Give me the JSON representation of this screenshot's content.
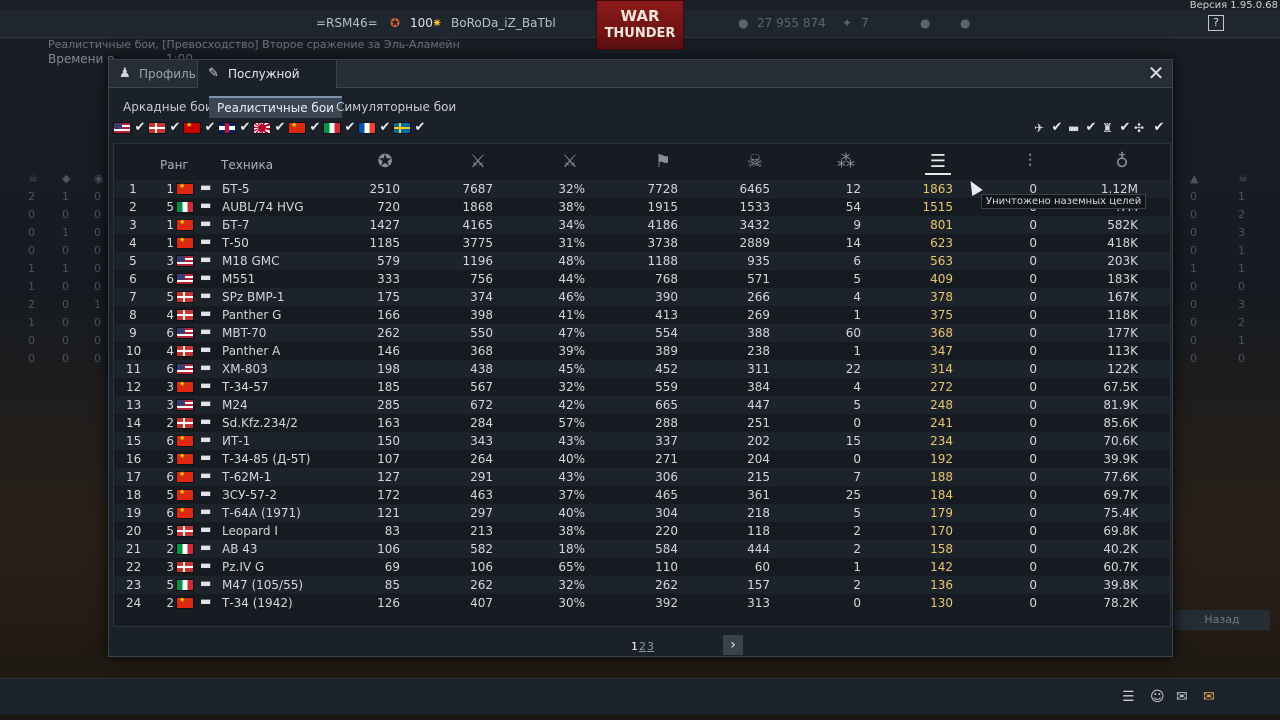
{
  "top": {
    "version": "Версия 1.95.0.68",
    "squad_tag": "=RSM46=",
    "level": "100",
    "nickname": "BoRoDa_iZ_BaTbl",
    "logo_line1": "WAR",
    "logo_line2": "THUNDER",
    "silver": "27 955 874",
    "gold": "7",
    "help": "?"
  },
  "background": {
    "battle_mode": "Реалистичные бои, [Превосходство] Второе сражение за Эль-Аламейн",
    "time_label": "Времени о",
    "time_value": "1:00",
    "back_button": "Назад"
  },
  "modal": {
    "tabs": [
      {
        "label": "Профиль",
        "icon": "profile-icon"
      },
      {
        "label": "Послужной список",
        "icon": "service-record-icon"
      }
    ],
    "close": "✕",
    "mode_tabs": [
      "Аркадные бои",
      "Реалистичные бои",
      "Симуляторные бои"
    ],
    "nations": [
      "usa",
      "germany",
      "ussr",
      "britain",
      "japan",
      "china",
      "italy",
      "france",
      "sweden"
    ],
    "filters": [
      "aircraft-icon",
      "tank-icon",
      "ship-icon",
      "helicopter-icon"
    ],
    "headers": {
      "rank": "Ранг",
      "vehicle": "Техника",
      "columns": [
        "victories-icon",
        "battles-icon",
        "winrate-icon",
        "respawns-icon",
        "deaths-icon",
        "flyouts-icon",
        "ground-kills-icon",
        "naval-kills-icon",
        "activity-icon"
      ]
    },
    "tooltip": "Уничтожено наземных целей",
    "pages": [
      "1",
      "2",
      "3"
    ],
    "next": "›"
  },
  "accent_color": "#e8c76a",
  "rows": [
    {
      "n": "1",
      "rank": "1",
      "flag": "chn",
      "name": "БТ-5",
      "c": [
        "2510",
        "7687",
        "32%",
        "7728",
        "6465",
        "12",
        "1863",
        "0",
        "1.12M"
      ]
    },
    {
      "n": "2",
      "rank": "5",
      "flag": "ita",
      "name": "AUBL/74 HVG",
      "c": [
        "720",
        "1868",
        "38%",
        "1915",
        "1533",
        "54",
        "1515",
        "0",
        ".7M"
      ]
    },
    {
      "n": "3",
      "rank": "1",
      "flag": "chn",
      "name": "БТ-7",
      "c": [
        "1427",
        "4165",
        "34%",
        "4186",
        "3432",
        "9",
        "801",
        "0",
        "582K"
      ]
    },
    {
      "n": "4",
      "rank": "1",
      "flag": "chn",
      "name": "Т-50",
      "c": [
        "1185",
        "3775",
        "31%",
        "3738",
        "2889",
        "14",
        "623",
        "0",
        "418K"
      ]
    },
    {
      "n": "5",
      "rank": "3",
      "flag": "usa",
      "name": "M18 GMC",
      "c": [
        "579",
        "1196",
        "48%",
        "1188",
        "935",
        "6",
        "563",
        "0",
        "203K"
      ]
    },
    {
      "n": "6",
      "rank": "6",
      "flag": "usa",
      "name": "M551",
      "c": [
        "333",
        "756",
        "44%",
        "768",
        "571",
        "5",
        "409",
        "0",
        "183K"
      ]
    },
    {
      "n": "7",
      "rank": "5",
      "flag": "ger",
      "name": "SPz BMP-1",
      "c": [
        "175",
        "374",
        "46%",
        "390",
        "266",
        "4",
        "378",
        "0",
        "167K"
      ]
    },
    {
      "n": "8",
      "rank": "4",
      "flag": "ger",
      "name": "Panther G",
      "c": [
        "166",
        "398",
        "41%",
        "413",
        "269",
        "1",
        "375",
        "0",
        "118K"
      ]
    },
    {
      "n": "9",
      "rank": "6",
      "flag": "usa",
      "name": "MBT-70",
      "c": [
        "262",
        "550",
        "47%",
        "554",
        "388",
        "60",
        "368",
        "0",
        "177K"
      ]
    },
    {
      "n": "10",
      "rank": "4",
      "flag": "ger",
      "name": "Panther A",
      "c": [
        "146",
        "368",
        "39%",
        "389",
        "238",
        "1",
        "347",
        "0",
        "113K"
      ]
    },
    {
      "n": "11",
      "rank": "6",
      "flag": "usa",
      "name": "XM-803",
      "c": [
        "198",
        "438",
        "45%",
        "452",
        "311",
        "22",
        "314",
        "0",
        "122K"
      ]
    },
    {
      "n": "12",
      "rank": "3",
      "flag": "chn",
      "name": "Т-34-57",
      "c": [
        "185",
        "567",
        "32%",
        "559",
        "384",
        "4",
        "272",
        "0",
        "67.5K"
      ]
    },
    {
      "n": "13",
      "rank": "3",
      "flag": "usa",
      "name": "M24",
      "c": [
        "285",
        "672",
        "42%",
        "665",
        "447",
        "5",
        "248",
        "0",
        "81.9K"
      ]
    },
    {
      "n": "14",
      "rank": "2",
      "flag": "ger",
      "name": "Sd.Kfz.234/2",
      "c": [
        "163",
        "284",
        "57%",
        "288",
        "251",
        "0",
        "241",
        "0",
        "85.6K"
      ]
    },
    {
      "n": "15",
      "rank": "6",
      "flag": "chn",
      "name": "ИТ-1",
      "c": [
        "150",
        "343",
        "43%",
        "337",
        "202",
        "15",
        "234",
        "0",
        "70.6K"
      ]
    },
    {
      "n": "16",
      "rank": "3",
      "flag": "chn",
      "name": "Т-34-85 (Д-5Т)",
      "c": [
        "107",
        "264",
        "40%",
        "271",
        "204",
        "0",
        "192",
        "0",
        "39.9K"
      ]
    },
    {
      "n": "17",
      "rank": "6",
      "flag": "chn",
      "name": "Т-62М-1",
      "c": [
        "127",
        "291",
        "43%",
        "306",
        "215",
        "7",
        "188",
        "0",
        "77.6K"
      ]
    },
    {
      "n": "18",
      "rank": "5",
      "flag": "chn",
      "name": "ЗСУ-57-2",
      "c": [
        "172",
        "463",
        "37%",
        "465",
        "361",
        "25",
        "184",
        "0",
        "69.7K"
      ]
    },
    {
      "n": "19",
      "rank": "6",
      "flag": "chn",
      "name": "Т-64А (1971)",
      "c": [
        "121",
        "297",
        "40%",
        "304",
        "218",
        "5",
        "179",
        "0",
        "75.4K"
      ]
    },
    {
      "n": "20",
      "rank": "5",
      "flag": "ger",
      "name": "Leopard I",
      "c": [
        "83",
        "213",
        "38%",
        "220",
        "118",
        "2",
        "170",
        "0",
        "69.8K"
      ]
    },
    {
      "n": "21",
      "rank": "2",
      "flag": "ita",
      "name": "AB 43",
      "c": [
        "106",
        "582",
        "18%",
        "584",
        "444",
        "2",
        "158",
        "0",
        "40.2K"
      ]
    },
    {
      "n": "22",
      "rank": "3",
      "flag": "ger",
      "name": "Pz.IV G",
      "c": [
        "69",
        "106",
        "65%",
        "110",
        "60",
        "1",
        "142",
        "0",
        "60.7K"
      ]
    },
    {
      "n": "23",
      "rank": "5",
      "flag": "ita",
      "name": "M47 (105/55)",
      "c": [
        "85",
        "262",
        "32%",
        "262",
        "157",
        "2",
        "136",
        "0",
        "39.8K"
      ]
    },
    {
      "n": "24",
      "rank": "2",
      "flag": "chn",
      "name": "Т-34 (1942)",
      "c": [
        "126",
        "407",
        "30%",
        "392",
        "313",
        "0",
        "130",
        "0",
        "78.2K"
      ]
    }
  ]
}
